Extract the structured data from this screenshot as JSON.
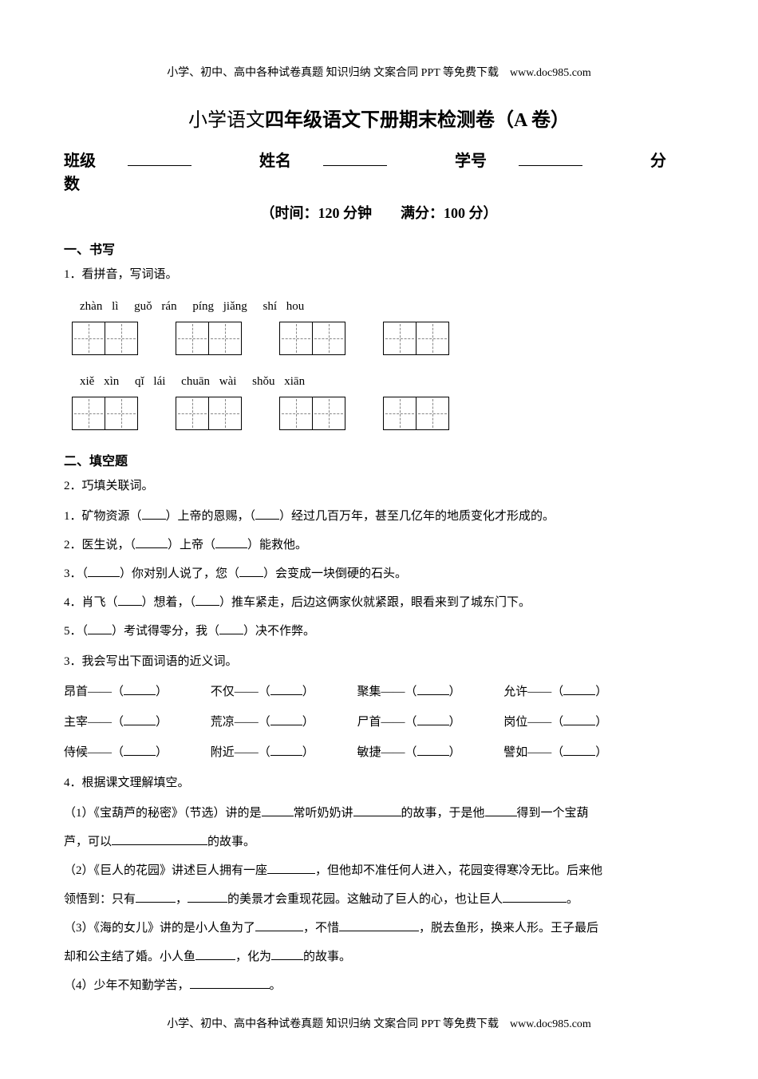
{
  "header_footer": "小学、初中、高中各种试卷真题 知识归纳 文案合同 PPT 等免费下载　www.doc985.com",
  "title_prefix": "小学语文",
  "title_main": "四年级语文下册期末检测卷（A 卷）",
  "info": {
    "class_label": "班级",
    "name_label": "姓名",
    "id_label": "学号",
    "score_label": "分数"
  },
  "time_row": "（时间：120 分钟　　满分：100 分）",
  "section1": {
    "header": "一、书写",
    "q1_label": "1．看拼音，写词语。",
    "pinyin_row1": [
      [
        "zhàn",
        "lì"
      ],
      [
        "guǒ",
        "rán"
      ],
      [
        "píng",
        "jiǎng"
      ],
      [
        "shí",
        "hou"
      ]
    ],
    "pinyin_row2": [
      [
        "xiě",
        "xìn"
      ],
      [
        "qǐ",
        "lái"
      ],
      [
        "chuān",
        "wài"
      ],
      [
        "shǒu",
        "xiān"
      ]
    ]
  },
  "section2": {
    "header": "二、填空题",
    "q2_label": "2．巧填关联词。",
    "q2_items": {
      "i1a": "1．矿物资源（",
      "i1b": "）上帝的恩赐，（",
      "i1c": "）经过几百万年，甚至几亿年的地质变化才形成的。",
      "i2a": "2．医生说，（",
      "i2b": "）上帝（",
      "i2c": "）能救他。",
      "i3a": "3．（",
      "i3b": "）你对别人说了，您（",
      "i3c": "）会变成一块倒硬的石头。",
      "i4a": "4．肖飞（",
      "i4b": "）想着，（",
      "i4c": "）推车紧走，后边这俩家伙就紧跟，眼看来到了城东门下。",
      "i5a": "5．（",
      "i5b": "）考试得零分，我（",
      "i5c": "）决不作弊。"
    },
    "q3_label": "3．我会写出下面词语的近义词。",
    "q3_rows": [
      [
        "昂首——",
        "不仅——",
        "聚集——",
        "允许——"
      ],
      [
        "主宰——",
        "荒凉——",
        "尸首——",
        "岗位——"
      ],
      [
        "侍候——",
        "附近——",
        "敏捷——",
        "譬如——"
      ]
    ],
    "q4_label": "4．根据课文理解填空。",
    "q4_1a": "（1）《宝葫芦的秘密》（节选）讲的是",
    "q4_1b": "常听奶奶讲",
    "q4_1c": "的故事，于是他",
    "q4_1d": "得到一个宝葫",
    "q4_1e": "芦，可以",
    "q4_1f": "的故事。",
    "q4_2a": "（2）《巨人的花园》讲述巨人拥有一座",
    "q4_2b": "，但他却不准任何人进入，花园变得寒冷无比。后来他",
    "q4_2c": "领悟到：只有",
    "q4_2d": "，",
    "q4_2e": "的美景才会重现花园。这触动了巨人的心，也让巨人",
    "q4_2f": "。",
    "q4_3a": "（3）《海的女儿》讲的是小人鱼为了",
    "q4_3b": "，不惜",
    "q4_3c": "，脱去鱼形，换来人形。王子最后",
    "q4_3d": "却和公主结了婚。小人鱼",
    "q4_3e": "，化为",
    "q4_3f": "的故事。",
    "q4_4a": "（4）少年不知勤学苦，",
    "q4_4b": "。"
  }
}
